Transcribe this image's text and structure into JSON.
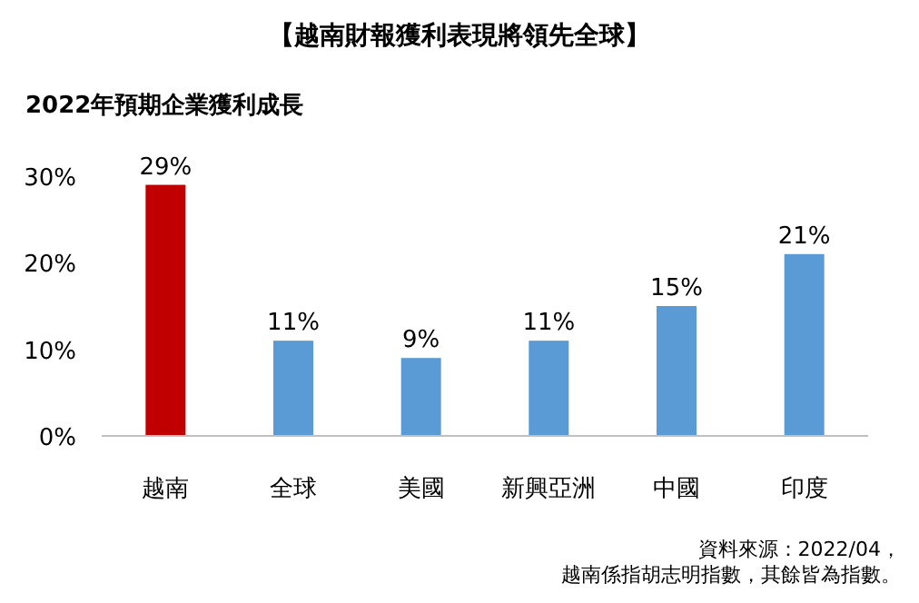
{
  "chart_data": {
    "type": "bar",
    "title": "【越南財報獲利表現將領先全球】",
    "ylabel": "2022年預期企業獲利成長",
    "categories": [
      "越南",
      "全球",
      "美國",
      "新興亞洲",
      "中國",
      "印度"
    ],
    "values": [
      29,
      11,
      9,
      11,
      15,
      21
    ],
    "colors": [
      "#c00000",
      "#5b9bd5",
      "#5b9bd5",
      "#5b9bd5",
      "#5b9bd5",
      "#5b9bd5"
    ],
    "ylim": [
      0,
      30
    ],
    "yticks": [
      {
        "value": 0,
        "label": "0%"
      },
      {
        "value": 10,
        "label": "10%"
      },
      {
        "value": 20,
        "label": "20%"
      },
      {
        "value": 30,
        "label": "30%"
      }
    ],
    "value_labels": [
      "29%",
      "11%",
      "9%",
      "11%",
      "15%",
      "21%"
    ],
    "grid": false,
    "annotations": [
      "資料來源：2022/04，",
      "越南係指胡志明指數，其餘皆為指數。"
    ]
  }
}
